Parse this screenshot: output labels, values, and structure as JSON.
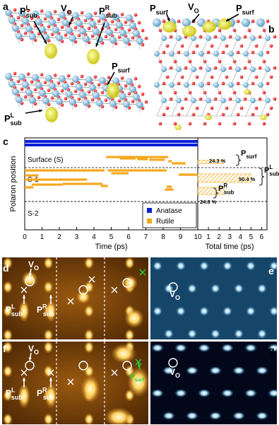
{
  "panel_labels": [
    "a",
    "b",
    "c",
    "d",
    "e",
    "f",
    "g"
  ],
  "panel_a": {
    "labels": [
      {
        "base": "P",
        "sup": "L",
        "sub": "sub"
      },
      {
        "base": "V",
        "sub": "O"
      },
      {
        "base": "P",
        "sup": "R",
        "sub": "sub"
      },
      {
        "base": "P",
        "sub": "surf"
      },
      {
        "base": "P",
        "sup": "L",
        "sub": "sub"
      }
    ]
  },
  "panel_b": {
    "labels": [
      {
        "base": "P",
        "sub": "surf"
      },
      {
        "base": "V",
        "sub": "O"
      },
      {
        "base": "P",
        "sub": "surf"
      }
    ]
  },
  "chart_data": {
    "type": "timeline",
    "ylabel": "Polaron position",
    "xlabel": "Time (ps)",
    "x2label": "Total time (ps)",
    "xlim": [
      0,
      10
    ],
    "xticks": [
      0,
      1,
      2,
      3,
      4,
      5,
      6,
      7,
      8,
      9,
      10
    ],
    "x2lim": [
      0,
      6.5
    ],
    "x2ticks": [
      0,
      1,
      2,
      3,
      4,
      5,
      6
    ],
    "ylim": [
      0,
      100
    ],
    "region_labels": [
      "Surface (S)",
      "S-1",
      "S-2"
    ],
    "boundaries": [
      67.7,
      30.8
    ],
    "legend": "lower right",
    "series": [
      {
        "name": "Anatase",
        "color": "#0b1fd6",
        "segments": [
          [
            0,
            10,
            96.2
          ],
          [
            0,
            10,
            92.3
          ]
        ]
      },
      {
        "name": "Rutile",
        "color": "#f5a81c",
        "segments": [
          [
            4.7,
            8.3,
            79.2
          ],
          [
            5.5,
            6.4,
            77.7
          ],
          [
            6.5,
            7.1,
            76.9
          ],
          [
            7.2,
            8.1,
            76.2
          ],
          [
            8.3,
            8.5,
            74.6
          ],
          [
            8.5,
            9.3,
            72.3
          ],
          [
            0,
            4.6,
            64.6
          ],
          [
            4.8,
            8.2,
            64.6
          ],
          [
            5.0,
            6.0,
            61.5
          ],
          [
            0,
            0.8,
            59.2
          ],
          [
            8.9,
            10,
            60.0
          ],
          [
            0,
            3.6,
            54.6
          ],
          [
            0.4,
            2.2,
            49.2
          ],
          [
            2.2,
            4.5,
            50.0
          ],
          [
            4.4,
            4.8,
            47.7
          ],
          [
            0,
            0.5,
            46.2
          ],
          [
            8.2,
            8.5,
            46.9
          ],
          [
            8.1,
            8.6,
            43.8
          ]
        ]
      }
    ],
    "total_times": [
      2.43,
      5.04,
      2.48
    ],
    "total_levels": [
      73.8,
      56.2,
      42.3
    ],
    "total_labels": [
      "24.3 %",
      "50.4 %",
      "24.8 %"
    ],
    "total_annotations": [
      {
        "base": "P",
        "sub": "surf"
      },
      {
        "base": "P",
        "sup": "L",
        "sub": "sub"
      },
      {
        "base": "P",
        "sup": "R",
        "sub": "sub"
      }
    ]
  },
  "panel_d": {
    "labels": [
      {
        "base": "V",
        "sub": "O"
      },
      {
        "base": "P",
        "sup": "L",
        "sub": "sub"
      },
      {
        "base": "P",
        "sup": "R",
        "sub": "sub"
      }
    ]
  },
  "panel_e": {
    "labels": [
      {
        "base": "V",
        "sub": "O"
      }
    ]
  },
  "panel_f": {
    "labels": [
      {
        "base": "V",
        "sub": "O"
      },
      {
        "base": "P",
        "sup": "L",
        "sub": "sub"
      },
      {
        "base": "P",
        "sup": "R",
        "sub": "sub"
      },
      {
        "base": "P",
        "sub": "surf"
      }
    ]
  },
  "panel_g": {
    "labels": [
      {
        "base": "V",
        "sub": "O"
      }
    ]
  }
}
